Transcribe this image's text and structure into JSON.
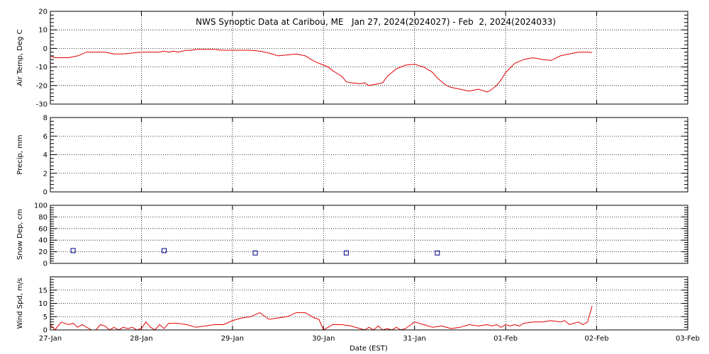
{
  "chart_data": {
    "type": "line",
    "title": "NWS Synoptic Data at Caribou, ME   Jan 27, 2024(2024027) - Feb  2, 2024(2024033)",
    "xlabel": "Date (EST)",
    "x_ticks": [
      "27-Jan",
      "28-Jan",
      "29-Jan",
      "30-Jan",
      "31-Jan",
      "01-Feb",
      "02-Feb",
      "03-Feb"
    ],
    "x_range_days": [
      0,
      7
    ],
    "grid": "dotted",
    "line_color": "#e00000",
    "marker_color": "#00008b",
    "panels": [
      {
        "ylabel": "Air Temp, Deg C",
        "ylim": [
          -30,
          20
        ],
        "yticks": [
          20,
          10,
          0,
          -10,
          -20,
          -30
        ],
        "type": "line",
        "series": [
          {
            "x": [
              0,
              0.05,
              0.12,
              0.2,
              0.3,
              0.4,
              0.5,
              0.6,
              0.7,
              0.8,
              0.9,
              1.0,
              1.1,
              1.2,
              1.25,
              1.3,
              1.35,
              1.4,
              1.45,
              1.5,
              1.55,
              1.6,
              1.7,
              1.8,
              1.9,
              2.0,
              2.1,
              2.2,
              2.3,
              2.4,
              2.5,
              2.6,
              2.7,
              2.8,
              2.9,
              3.0,
              3.05,
              3.1,
              3.2,
              3.25,
              3.3,
              3.4,
              3.45,
              3.5,
              3.6,
              3.65,
              3.7,
              3.75,
              3.8,
              3.85,
              3.9,
              4.0,
              4.1,
              4.2,
              4.25,
              4.3,
              4.35,
              4.4,
              4.5,
              4.6,
              4.7,
              4.8,
              4.85,
              4.9,
              4.95,
              5.0,
              5.1,
              5.2,
              5.3,
              5.4,
              5.5,
              5.6,
              5.7,
              5.8,
              5.9,
              5.95
            ],
            "y": [
              -4,
              -5,
              -5,
              -5,
              -4,
              -2,
              -2,
              -2,
              -3,
              -3,
              -2.5,
              -2,
              -2,
              -2,
              -1.5,
              -2,
              -1.5,
              -2,
              -1.5,
              -1,
              -1,
              -0.5,
              -0.5,
              -0.5,
              -1,
              -1,
              -1,
              -1,
              -1.5,
              -2.5,
              -4,
              -3.5,
              -3,
              -4,
              -7,
              -9,
              -10,
              -12,
              -15,
              -18,
              -18.5,
              -19,
              -18.5,
              -20,
              -19,
              -18.5,
              -15,
              -13,
              -11,
              -10,
              -9,
              -8.5,
              -10,
              -13,
              -16,
              -18,
              -20,
              -21,
              -22,
              -23,
              -22,
              -23.5,
              -22,
              -20,
              -17,
              -13,
              -8,
              -6,
              -5,
              -6,
              -6.5,
              -4,
              -3,
              -2,
              -2,
              -2.2
            ]
          }
        ]
      },
      {
        "ylabel": "Precip, mm",
        "ylim": [
          0,
          8
        ],
        "yticks": [
          8,
          6,
          4,
          2,
          0
        ],
        "type": "bar",
        "series": []
      },
      {
        "ylabel": "Snow Dep, cm",
        "ylim": [
          0,
          100
        ],
        "yticks": [
          100,
          80,
          60,
          40,
          20,
          0
        ],
        "type": "scatter",
        "series": [
          {
            "x": [
              0.25,
              1.25,
              2.25,
              3.25,
              4.25
            ],
            "y": [
              22,
              22,
              18,
              18,
              18
            ]
          }
        ]
      },
      {
        "ylabel": "Wind Spd, m/s",
        "ylim": [
          0,
          20
        ],
        "yticks": [
          15,
          10,
          5,
          0
        ],
        "type": "line",
        "series": [
          {
            "x": [
              0,
              0.05,
              0.12,
              0.2,
              0.25,
              0.3,
              0.35,
              0.4,
              0.45,
              0.5,
              0.55,
              0.6,
              0.65,
              0.7,
              0.75,
              0.8,
              0.85,
              0.9,
              0.95,
              1.0,
              1.05,
              1.1,
              1.15,
              1.2,
              1.25,
              1.3,
              1.35,
              1.4,
              1.5,
              1.6,
              1.7,
              1.8,
              1.9,
              2.0,
              2.1,
              2.2,
              2.3,
              2.4,
              2.5,
              2.6,
              2.7,
              2.8,
              2.9,
              2.95,
              3.0,
              3.05,
              3.1,
              3.2,
              3.3,
              3.4,
              3.45,
              3.5,
              3.55,
              3.6,
              3.65,
              3.7,
              3.75,
              3.8,
              3.85,
              3.9,
              4.0,
              4.1,
              4.2,
              4.3,
              4.4,
              4.5,
              4.6,
              4.7,
              4.8,
              4.85,
              4.9,
              4.95,
              5.0,
              5.05,
              5.1,
              5.15,
              5.2,
              5.3,
              5.4,
              5.5,
              5.6,
              5.65,
              5.7,
              5.75,
              5.8,
              5.85,
              5.9,
              5.95
            ],
            "y": [
              2,
              0,
              3,
              2,
              2.5,
              1,
              2,
              1,
              0,
              0,
              2,
              1.5,
              0,
              1,
              0,
              1,
              0.5,
              1,
              0,
              0.5,
              3,
              1,
              0,
              2,
              0.5,
              2.5,
              2.5,
              2.5,
              2,
              1,
              1.5,
              2,
              2,
              3.5,
              4.5,
              5,
              6.5,
              4,
              4.5,
              5,
              6.5,
              6.5,
              4.5,
              4,
              0,
              1,
              2,
              2,
              1.5,
              0.5,
              0,
              1,
              0,
              1.5,
              0,
              0.5,
              0,
              1,
              0,
              0.5,
              3,
              2,
              1,
              1.5,
              0.5,
              1,
              2,
              1.5,
              2,
              1.5,
              2,
              1,
              2,
              1.5,
              2,
              1.5,
              2.5,
              3,
              3,
              3.5,
              3,
              3.5,
              2,
              2.5,
              3,
              2,
              3,
              9
            ]
          }
        ]
      }
    ]
  }
}
